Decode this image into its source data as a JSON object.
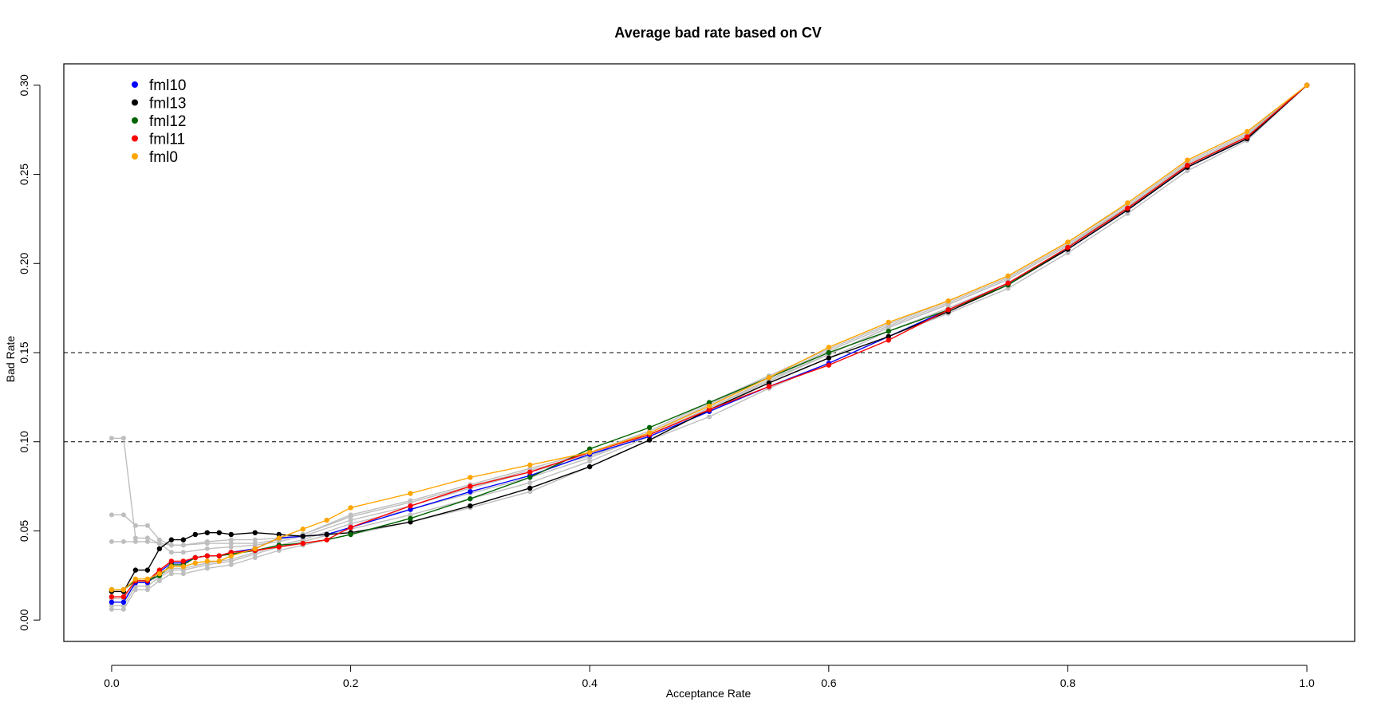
{
  "chart_data": {
    "type": "line",
    "title": "Average bad rate based on CV",
    "xlabel": "Acceptance Rate",
    "ylabel": "Bad Rate",
    "xlim": [
      -0.04,
      1.04
    ],
    "ylim": [
      -0.012,
      0.312
    ],
    "xticks": [
      "0.0",
      "0.2",
      "0.4",
      "0.6",
      "0.8",
      "1.0"
    ],
    "yticks": [
      "0.00",
      "0.05",
      "0.10",
      "0.15",
      "0.20",
      "0.25",
      "0.30"
    ],
    "hlines": [
      0.1,
      0.15
    ],
    "legend_position": "top-left",
    "background_series_color": "#bebebe",
    "background_series": [
      {
        "x": [
          0.0,
          0.01,
          0.02,
          0.03,
          0.04,
          0.05,
          0.06,
          0.08,
          0.1,
          0.12,
          0.14,
          0.16,
          0.2,
          0.25,
          0.3,
          0.35,
          0.4,
          0.45,
          0.5,
          0.55,
          0.6,
          0.65,
          0.7,
          0.75,
          0.8,
          0.85,
          0.9,
          0.95,
          1.0
        ],
        "y": [
          0.102,
          0.102,
          0.046,
          0.046,
          0.043,
          0.038,
          0.038,
          0.04,
          0.041,
          0.042,
          0.044,
          0.047,
          0.056,
          0.064,
          0.074,
          0.083,
          0.092,
          0.104,
          0.119,
          0.134,
          0.149,
          0.164,
          0.177,
          0.191,
          0.21,
          0.231,
          0.255,
          0.271,
          0.3
        ]
      },
      {
        "x": [
          0.0,
          0.01,
          0.02,
          0.03,
          0.04,
          0.05,
          0.06,
          0.08,
          0.1,
          0.12,
          0.14,
          0.16,
          0.2,
          0.25,
          0.3,
          0.35,
          0.4,
          0.45,
          0.5,
          0.55,
          0.6,
          0.65,
          0.7,
          0.75,
          0.8,
          0.85,
          0.9,
          0.95,
          1.0
        ],
        "y": [
          0.059,
          0.059,
          0.053,
          0.053,
          0.045,
          0.042,
          0.042,
          0.043,
          0.043,
          0.043,
          0.045,
          0.048,
          0.058,
          0.066,
          0.075,
          0.084,
          0.093,
          0.105,
          0.121,
          0.136,
          0.151,
          0.165,
          0.178,
          0.192,
          0.211,
          0.232,
          0.256,
          0.272,
          0.3
        ]
      },
      {
        "x": [
          0.0,
          0.01,
          0.02,
          0.03,
          0.04,
          0.05,
          0.06,
          0.08,
          0.1,
          0.12,
          0.14,
          0.16,
          0.2,
          0.25,
          0.3,
          0.35,
          0.4,
          0.45,
          0.5,
          0.55,
          0.6,
          0.65,
          0.7,
          0.75,
          0.8,
          0.85,
          0.9,
          0.95,
          1.0
        ],
        "y": [
          0.044,
          0.044,
          0.044,
          0.044,
          0.043,
          0.042,
          0.042,
          0.044,
          0.045,
          0.045,
          0.046,
          0.048,
          0.059,
          0.067,
          0.076,
          0.085,
          0.094,
          0.106,
          0.122,
          0.137,
          0.152,
          0.166,
          0.179,
          0.193,
          0.212,
          0.233,
          0.257,
          0.273,
          0.3
        ]
      },
      {
        "x": [
          0.0,
          0.01,
          0.02,
          0.03,
          0.04,
          0.05,
          0.06,
          0.08,
          0.1,
          0.12,
          0.14,
          0.16,
          0.2,
          0.25,
          0.3,
          0.35,
          0.4,
          0.45,
          0.5,
          0.55,
          0.6,
          0.65,
          0.7,
          0.75,
          0.8,
          0.85,
          0.9,
          0.95,
          1.0
        ],
        "y": [
          0.006,
          0.006,
          0.017,
          0.017,
          0.022,
          0.026,
          0.026,
          0.029,
          0.031,
          0.035,
          0.039,
          0.042,
          0.048,
          0.055,
          0.063,
          0.072,
          0.086,
          0.101,
          0.114,
          0.13,
          0.144,
          0.159,
          0.172,
          0.186,
          0.206,
          0.228,
          0.252,
          0.269,
          0.3
        ]
      },
      {
        "x": [
          0.0,
          0.01,
          0.02,
          0.03,
          0.04,
          0.05,
          0.06,
          0.08,
          0.1,
          0.12,
          0.14,
          0.16,
          0.2,
          0.25,
          0.3,
          0.35,
          0.4,
          0.45,
          0.5,
          0.55,
          0.6,
          0.65,
          0.7,
          0.75,
          0.8,
          0.85,
          0.9,
          0.95,
          1.0
        ],
        "y": [
          0.008,
          0.008,
          0.019,
          0.019,
          0.024,
          0.028,
          0.028,
          0.031,
          0.033,
          0.037,
          0.041,
          0.044,
          0.051,
          0.059,
          0.068,
          0.077,
          0.089,
          0.103,
          0.117,
          0.133,
          0.147,
          0.162,
          0.175,
          0.189,
          0.208,
          0.23,
          0.254,
          0.271,
          0.3
        ]
      },
      {
        "x": [
          0.0,
          0.01,
          0.02,
          0.03,
          0.04,
          0.05,
          0.06,
          0.08,
          0.1,
          0.12,
          0.14,
          0.16,
          0.2,
          0.25,
          0.3,
          0.35,
          0.4,
          0.45,
          0.5,
          0.55,
          0.6,
          0.65,
          0.7,
          0.75,
          0.8,
          0.85,
          0.9,
          0.95,
          1.0
        ],
        "y": [
          0.012,
          0.012,
          0.021,
          0.021,
          0.025,
          0.029,
          0.029,
          0.032,
          0.034,
          0.038,
          0.042,
          0.045,
          0.054,
          0.062,
          0.071,
          0.08,
          0.091,
          0.104,
          0.119,
          0.135,
          0.149,
          0.164,
          0.177,
          0.191,
          0.21,
          0.232,
          0.256,
          0.272,
          0.3
        ]
      }
    ],
    "series": [
      {
        "name": "fml10",
        "color": "#0000ff",
        "x": [
          0.0,
          0.01,
          0.02,
          0.03,
          0.04,
          0.05,
          0.06,
          0.07,
          0.08,
          0.09,
          0.1,
          0.12,
          0.14,
          0.16,
          0.18,
          0.2,
          0.25,
          0.3,
          0.35,
          0.4,
          0.45,
          0.5,
          0.55,
          0.6,
          0.65,
          0.7,
          0.75,
          0.8,
          0.85,
          0.9,
          0.95,
          1.0
        ],
        "y": [
          0.01,
          0.01,
          0.021,
          0.021,
          0.027,
          0.032,
          0.032,
          0.035,
          0.036,
          0.036,
          0.038,
          0.04,
          0.046,
          0.047,
          0.048,
          0.052,
          0.062,
          0.072,
          0.081,
          0.093,
          0.103,
          0.117,
          0.131,
          0.144,
          0.159,
          0.174,
          0.189,
          0.208,
          0.23,
          0.254,
          0.27,
          0.3
        ]
      },
      {
        "name": "fml13",
        "color": "#000000",
        "x": [
          0.0,
          0.01,
          0.02,
          0.03,
          0.04,
          0.05,
          0.06,
          0.07,
          0.08,
          0.09,
          0.1,
          0.12,
          0.14,
          0.16,
          0.18,
          0.2,
          0.25,
          0.3,
          0.35,
          0.4,
          0.45,
          0.5,
          0.55,
          0.6,
          0.65,
          0.7,
          0.75,
          0.8,
          0.85,
          0.9,
          0.95,
          1.0
        ],
        "y": [
          0.016,
          0.016,
          0.028,
          0.028,
          0.04,
          0.045,
          0.045,
          0.048,
          0.049,
          0.049,
          0.048,
          0.049,
          0.048,
          0.047,
          0.048,
          0.049,
          0.055,
          0.064,
          0.074,
          0.086,
          0.101,
          0.118,
          0.133,
          0.147,
          0.159,
          0.173,
          0.188,
          0.208,
          0.23,
          0.254,
          0.27,
          0.3
        ]
      },
      {
        "name": "fml12",
        "color": "#006400",
        "x": [
          0.0,
          0.01,
          0.02,
          0.03,
          0.04,
          0.05,
          0.06,
          0.07,
          0.08,
          0.09,
          0.1,
          0.12,
          0.14,
          0.16,
          0.18,
          0.2,
          0.25,
          0.3,
          0.35,
          0.4,
          0.45,
          0.5,
          0.55,
          0.6,
          0.65,
          0.7,
          0.75,
          0.8,
          0.85,
          0.9,
          0.95,
          1.0
        ],
        "y": [
          0.017,
          0.017,
          0.022,
          0.022,
          0.025,
          0.031,
          0.031,
          0.035,
          0.036,
          0.036,
          0.037,
          0.039,
          0.042,
          0.043,
          0.045,
          0.048,
          0.057,
          0.068,
          0.08,
          0.096,
          0.108,
          0.122,
          0.136,
          0.15,
          0.162,
          0.174,
          0.188,
          0.209,
          0.231,
          0.255,
          0.271,
          0.3
        ]
      },
      {
        "name": "fml11",
        "color": "#ff0000",
        "x": [
          0.0,
          0.01,
          0.02,
          0.03,
          0.04,
          0.05,
          0.06,
          0.07,
          0.08,
          0.09,
          0.1,
          0.12,
          0.14,
          0.16,
          0.18,
          0.2,
          0.25,
          0.3,
          0.35,
          0.4,
          0.45,
          0.5,
          0.55,
          0.6,
          0.65,
          0.7,
          0.75,
          0.8,
          0.85,
          0.9,
          0.95,
          1.0
        ],
        "y": [
          0.013,
          0.013,
          0.022,
          0.022,
          0.028,
          0.033,
          0.033,
          0.035,
          0.036,
          0.036,
          0.038,
          0.039,
          0.041,
          0.043,
          0.045,
          0.052,
          0.064,
          0.075,
          0.083,
          0.094,
          0.104,
          0.118,
          0.131,
          0.143,
          0.157,
          0.174,
          0.189,
          0.209,
          0.231,
          0.255,
          0.271,
          0.3
        ]
      },
      {
        "name": "fml0",
        "color": "#ffa500",
        "x": [
          0.0,
          0.01,
          0.02,
          0.03,
          0.04,
          0.05,
          0.06,
          0.07,
          0.08,
          0.09,
          0.1,
          0.12,
          0.14,
          0.16,
          0.18,
          0.2,
          0.25,
          0.3,
          0.35,
          0.4,
          0.45,
          0.5,
          0.55,
          0.6,
          0.65,
          0.7,
          0.75,
          0.8,
          0.85,
          0.9,
          0.95,
          1.0
        ],
        "y": [
          0.017,
          0.017,
          0.023,
          0.023,
          0.026,
          0.03,
          0.03,
          0.032,
          0.033,
          0.033,
          0.036,
          0.04,
          0.046,
          0.051,
          0.056,
          0.063,
          0.071,
          0.08,
          0.087,
          0.094,
          0.105,
          0.12,
          0.136,
          0.153,
          0.167,
          0.179,
          0.193,
          0.212,
          0.234,
          0.258,
          0.274,
          0.3
        ]
      }
    ]
  }
}
